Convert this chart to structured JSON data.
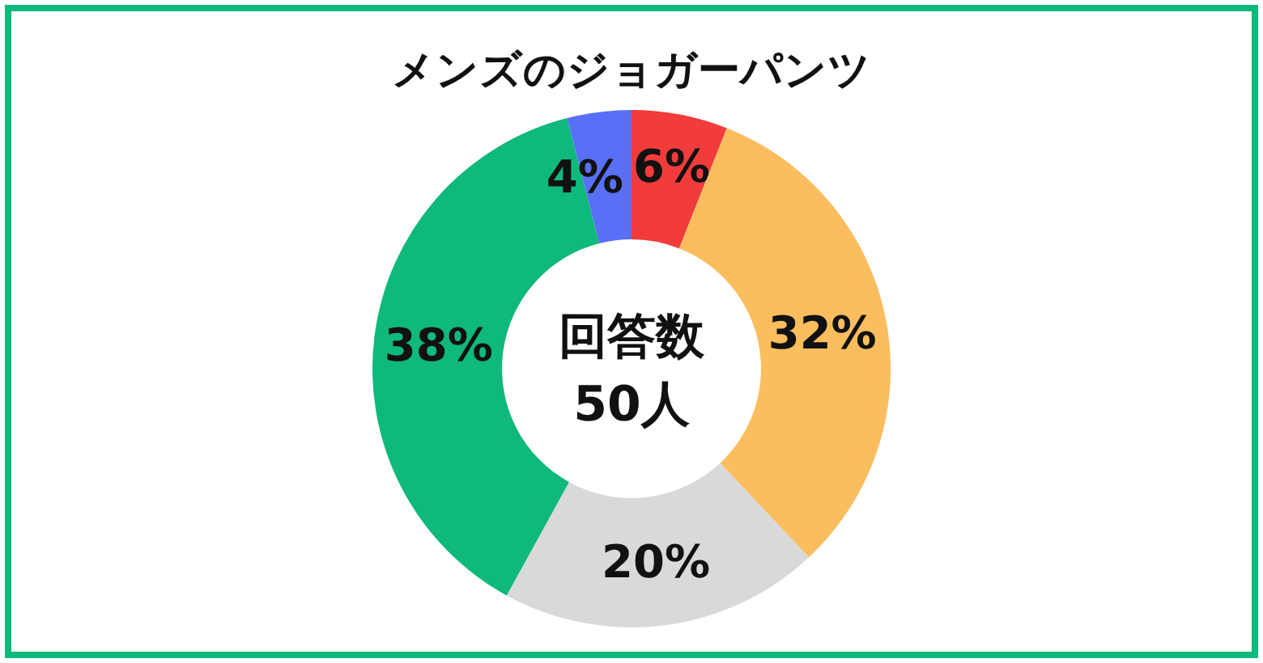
{
  "chart_data": {
    "type": "donut",
    "title": "メンズのジョガーパンツ",
    "categories": [
      null,
      null,
      null,
      null,
      null
    ],
    "values": [
      6,
      32,
      20,
      38,
      4
    ],
    "colors": [
      "#f23b3b",
      "#fbbd5e",
      "#d9d9d9",
      "#0fb97b",
      "#5870f5"
    ],
    "value_labels": [
      "6%",
      "32%",
      "20%",
      "38%",
      "4%"
    ],
    "annotations": [
      "回答数\n50人"
    ]
  }
}
